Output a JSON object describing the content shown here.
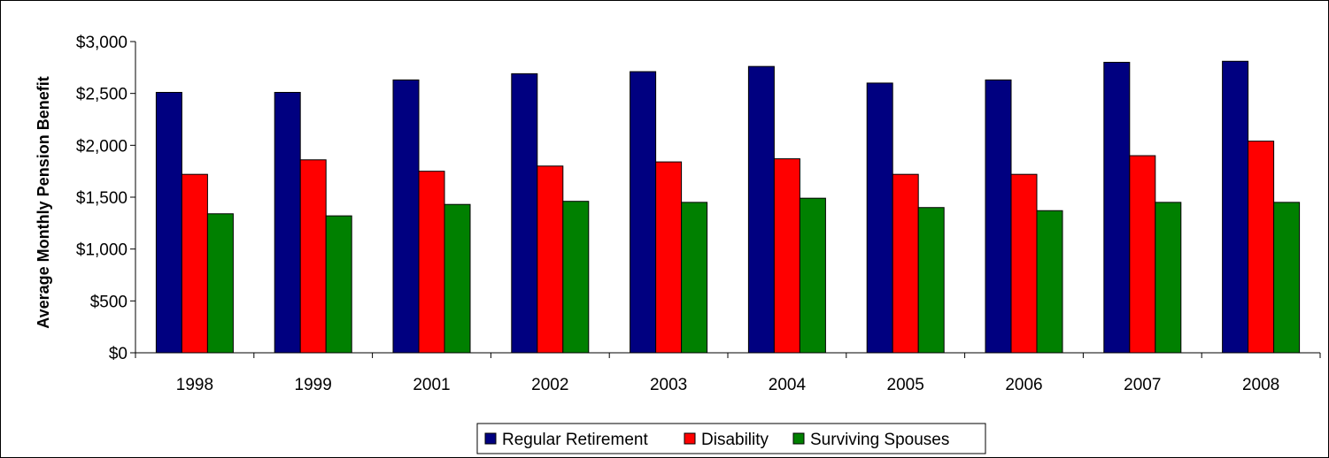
{
  "chart_data": {
    "type": "bar",
    "title": "",
    "xlabel": "",
    "ylabel": "Average Monthly Pension Benefit",
    "categories": [
      "1998",
      "1999",
      "2001",
      "2002",
      "2003",
      "2004",
      "2005",
      "2006",
      "2007",
      "2008"
    ],
    "series": [
      {
        "name": "Regular Retirement",
        "color": "#000080",
        "values": [
          2510,
          2510,
          2630,
          2690,
          2710,
          2760,
          2600,
          2630,
          2800,
          2810
        ]
      },
      {
        "name": "Disability",
        "color": "#ff0000",
        "values": [
          1720,
          1860,
          1750,
          1800,
          1840,
          1870,
          1720,
          1720,
          1900,
          2040
        ]
      },
      {
        "name": "Surviving Spouses",
        "color": "#008000",
        "values": [
          1340,
          1320,
          1430,
          1460,
          1450,
          1490,
          1400,
          1370,
          1450,
          1450
        ]
      }
    ],
    "ylim": [
      0,
      3000
    ],
    "yticks": [
      0,
      500,
      1000,
      1500,
      2000,
      2500,
      3000
    ],
    "ytick_labels": [
      "$0",
      "$500",
      "$1,000",
      "$1,500",
      "$2,000",
      "$2,500",
      "$3,000"
    ],
    "grid": false,
    "legend_position": "bottom"
  }
}
